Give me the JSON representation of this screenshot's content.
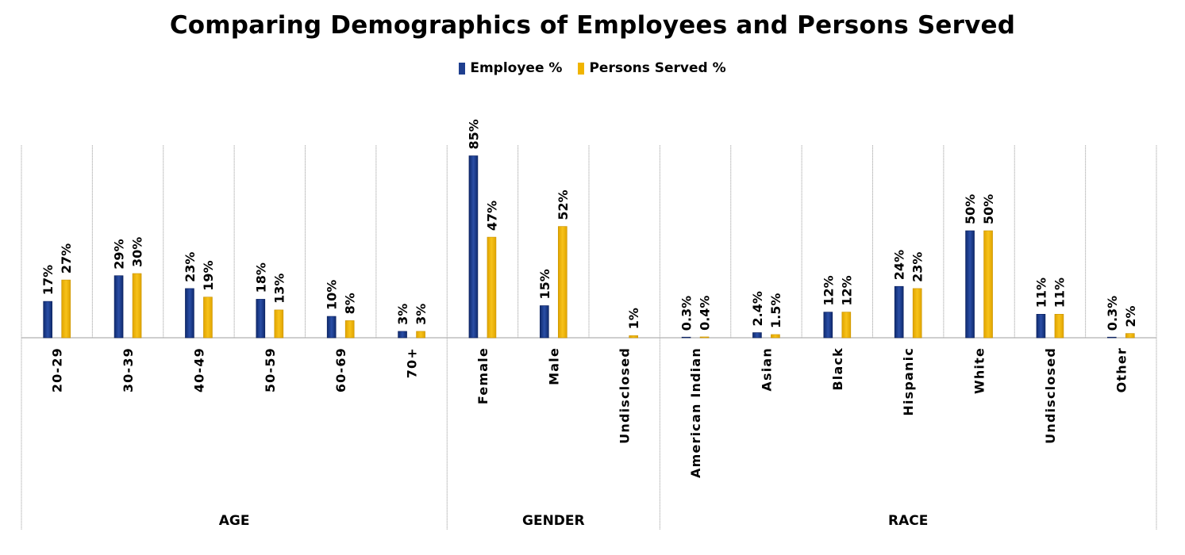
{
  "chart_data": {
    "type": "bar",
    "title": "Comparing Demographics of Employees and Persons Served",
    "xlabel": "",
    "ylabel": "",
    "ylim": [
      0,
      90
    ],
    "grid": "vertical separators only",
    "legend_position": "top-center",
    "colors": {
      "employee": "#1f3f8f",
      "served": "#f0b400"
    },
    "groups": [
      {
        "label": "AGE",
        "categories": [
          "20-29",
          "30-39",
          "40-49",
          "50-59",
          "60-69",
          "70+"
        ]
      },
      {
        "label": "GENDER",
        "categories": [
          "Female",
          "Male",
          "Undisclosed"
        ]
      },
      {
        "label": "RACE",
        "categories": [
          "American Indian",
          "Asian",
          "Black",
          "Hispanic",
          "White",
          "Undisclosed",
          "Other"
        ]
      }
    ],
    "categories": [
      "20-29",
      "30-39",
      "40-49",
      "50-59",
      "60-69",
      "70+",
      "Female",
      "Male",
      "Undisclosed",
      "American Indian",
      "Asian",
      "Black",
      "Hispanic",
      "White",
      "Undisclosed",
      "Other"
    ],
    "series": [
      {
        "name": "Employee %",
        "values": [
          17,
          29,
          23,
          18,
          10,
          3,
          85,
          15,
          null,
          0.3,
          2.4,
          12,
          24,
          50,
          11,
          0.3
        ],
        "labels": [
          "17%",
          "29%",
          "23%",
          "18%",
          "10%",
          "3%",
          "85%",
          "15%",
          "",
          "0.3%",
          "2.4%",
          "12%",
          "24%",
          "50%",
          "11%",
          "0.3%"
        ]
      },
      {
        "name": "Persons Served %",
        "values": [
          27,
          30,
          19,
          13,
          8,
          3,
          47,
          52,
          1,
          0.4,
          1.5,
          12,
          23,
          50,
          11,
          2
        ],
        "labels": [
          "27%",
          "30%",
          "19%",
          "13%",
          "8%",
          "3%",
          "47%",
          "52%",
          "1%",
          "0.4%",
          "1.5%",
          "12%",
          "23%",
          "50%",
          "11%",
          "2%"
        ]
      }
    ]
  }
}
